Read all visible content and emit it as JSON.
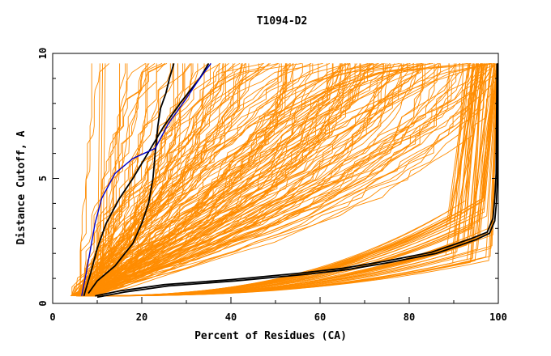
{
  "chart_data": {
    "type": "line",
    "title": "T1094-D2",
    "xlabel": "Percent of Residues (CA)",
    "ylabel": "Distance Cutoff, A",
    "xlim": [
      0,
      100
    ],
    "ylim": [
      0,
      10
    ],
    "x_ticks": [
      "0",
      "20",
      "40",
      "60",
      "80",
      "100"
    ],
    "y_ticks": [
      "0",
      "5",
      "10"
    ],
    "grid": false,
    "legend": "none",
    "colors": {
      "models": "#ff8c00",
      "highlight_black": "#000000",
      "highlight_blue": "#0000cc"
    },
    "series": [
      {
        "color": "#000000",
        "x": [
          8,
          10,
          14,
          18,
          20,
          21.5,
          22.5,
          23,
          23.6,
          24.2,
          25.4,
          26.2,
          27.2
        ],
        "y": [
          0.4,
          0.9,
          1.5,
          2.4,
          3.2,
          4.0,
          5.0,
          6.0,
          7.1,
          7.8,
          8.4,
          9.0,
          9.6
        ]
      },
      {
        "color": "#000000",
        "x": [
          7,
          8.5,
          10,
          12,
          15,
          18,
          20,
          22,
          25,
          29,
          33,
          35
        ],
        "y": [
          0.3,
          1.2,
          2.2,
          3.2,
          4.2,
          5.0,
          5.6,
          6.2,
          7.1,
          8.1,
          9.0,
          9.6
        ]
      },
      {
        "color": "#0000cc",
        "x": [
          6.5,
          7.5,
          8.5,
          9.5,
          11,
          14,
          18,
          23,
          26,
          30,
          33,
          35.5
        ],
        "y": [
          0.3,
          1.2,
          2.2,
          3.2,
          4.2,
          5.2,
          5.8,
          6.2,
          7.2,
          8.2,
          9.0,
          9.6
        ]
      },
      {
        "color": "#000000",
        "x": [
          9.5,
          15,
          25,
          40,
          55,
          65,
          75,
          85,
          90,
          94,
          97.5,
          98.8,
          99.2,
          99.5,
          99.7
        ],
        "y": [
          0.3,
          0.5,
          0.75,
          0.95,
          1.2,
          1.4,
          1.7,
          2.05,
          2.35,
          2.6,
          2.85,
          3.4,
          4.2,
          5.2,
          9.6
        ]
      },
      {
        "color": "#000000",
        "x": [
          10,
          16,
          26,
          41,
          56,
          66,
          76,
          86,
          91,
          95,
          98,
          99.2,
          99.6,
          99.8,
          99.9
        ],
        "y": [
          0.25,
          0.45,
          0.7,
          0.9,
          1.15,
          1.35,
          1.65,
          2.0,
          2.3,
          2.55,
          2.8,
          3.3,
          4.1,
          5.0,
          9.6
        ]
      }
    ]
  }
}
